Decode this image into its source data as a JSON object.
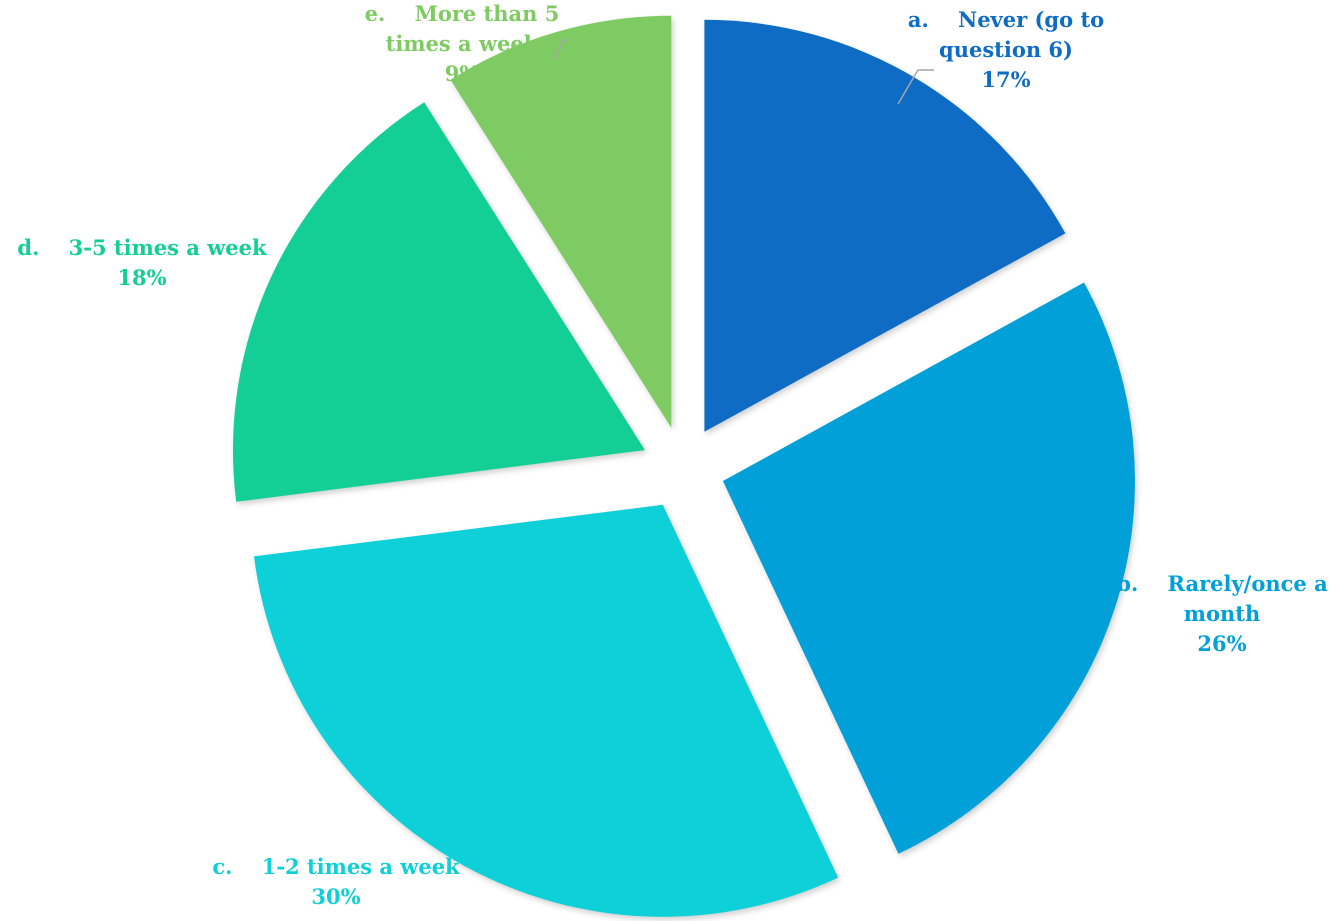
{
  "chart_data": {
    "type": "pie",
    "exploded": true,
    "start_angle_deg": 0,
    "direction": "clockwise",
    "title": "",
    "slices": [
      {
        "letter": "a.",
        "label_lines": [
          "Never (go to",
          "question 6)"
        ],
        "percent_label": "17%",
        "value": 17,
        "color": "#0F6CC4"
      },
      {
        "letter": "b.",
        "label_lines": [
          "Rarely/once a",
          "month"
        ],
        "percent_label": "26%",
        "value": 26,
        "color": "#02A0D9"
      },
      {
        "letter": "c.",
        "label_lines": [
          "1-2 times a week"
        ],
        "percent_label": "30%",
        "value": 30,
        "color": "#0DD0D8"
      },
      {
        "letter": "d.",
        "label_lines": [
          "3-5 times a week"
        ],
        "percent_label": "18%",
        "value": 18,
        "color": "#13CF96"
      },
      {
        "letter": "e.",
        "label_lines": [
          "More than 5",
          "times a week"
        ],
        "percent_label": "9%",
        "value": 9,
        "color": "#7FCB63"
      }
    ],
    "leader_lines": true,
    "leader_line_color": "#A6A6A6"
  }
}
